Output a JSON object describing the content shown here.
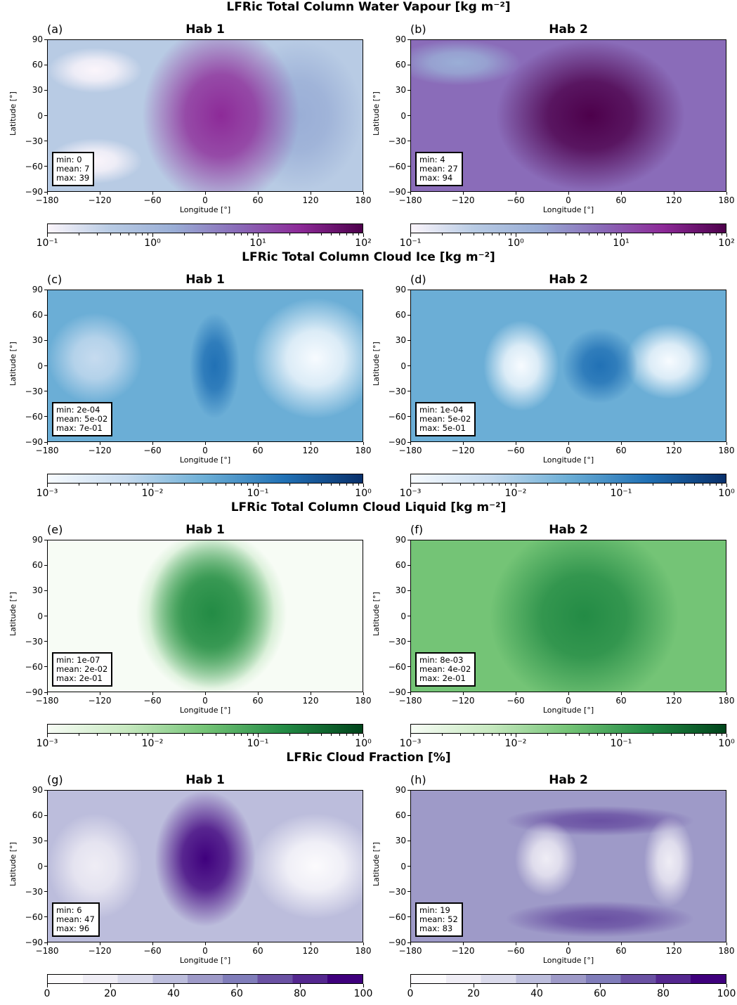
{
  "rows": [
    {
      "title": "LFRic Total Column Water Vapour [kg m⁻²]",
      "cmap": [
        "#fbf5fb",
        "#b8cbe4",
        "#9aaed6",
        "#8a6cb9",
        "#8d2a98",
        "#4d004b"
      ],
      "colorbar": {
        "type": "log",
        "ticks": [
          "10⁻¹",
          "10⁰",
          "10¹",
          "10²"
        ]
      },
      "panels": [
        {
          "letter": "(a)",
          "title": "Hab 1",
          "stats": [
            "min: 0",
            "mean: 7",
            "max: 39"
          ]
        },
        {
          "letter": "(b)",
          "title": "Hab 2",
          "stats": [
            "min: 4",
            "mean: 27",
            "max: 94"
          ]
        }
      ]
    },
    {
      "title": "LFRic Total Column Cloud Ice [kg m⁻²]",
      "cmap": [
        "#f7fbff",
        "#c6dbef",
        "#6baed6",
        "#2171b5",
        "#08306b"
      ],
      "colorbar": {
        "type": "log",
        "ticks": [
          "10⁻³",
          "10⁻²",
          "10⁻¹",
          "10⁰"
        ]
      },
      "panels": [
        {
          "letter": "(c)",
          "title": "Hab 1",
          "stats": [
            "min: 2e-04",
            "mean: 5e-02",
            "max: 7e-01"
          ]
        },
        {
          "letter": "(d)",
          "title": "Hab 2",
          "stats": [
            "min: 1e-04",
            "mean: 5e-02",
            "max: 5e-01"
          ]
        }
      ]
    },
    {
      "title": "LFRic Total Column Cloud Liquid [kg m⁻²]",
      "cmap": [
        "#f7fcf5",
        "#c7e9c0",
        "#74c476",
        "#238b45",
        "#00441b"
      ],
      "colorbar": {
        "type": "log",
        "ticks": [
          "10⁻³",
          "10⁻²",
          "10⁻¹",
          "10⁰"
        ]
      },
      "panels": [
        {
          "letter": "(e)",
          "title": "Hab 1",
          "stats": [
            "min: 1e-07",
            "mean: 2e-02",
            "max: 2e-01"
          ]
        },
        {
          "letter": "(f)",
          "title": "Hab 2",
          "stats": [
            "min: 8e-03",
            "mean: 4e-02",
            "max: 2e-01"
          ]
        }
      ]
    },
    {
      "title": "LFRic Cloud Fraction [%]",
      "cmap": [
        "#fcfbfd",
        "#efedf5",
        "#dadaeb",
        "#bcbddc",
        "#9e9ac8",
        "#807dba",
        "#6a51a3",
        "#54278f",
        "#3f007d"
      ],
      "colorbar": {
        "type": "linear",
        "ticks": [
          "0",
          "20",
          "40",
          "60",
          "80",
          "100"
        ]
      },
      "panels": [
        {
          "letter": "(g)",
          "title": "Hab 1",
          "stats": [
            "min: 6",
            "mean: 47",
            "max: 96"
          ]
        },
        {
          "letter": "(h)",
          "title": "Hab 2",
          "stats": [
            "min: 19",
            "mean: 52",
            "max: 83"
          ]
        }
      ]
    }
  ],
  "axes": {
    "xlabel": "Longitude [°]",
    "ylabel": "Latitude [°]",
    "xticks": [
      "−180",
      "−120",
      "−60",
      "0",
      "60",
      "120",
      "180"
    ],
    "yticks": [
      "90",
      "60",
      "30",
      "0",
      "−30",
      "−60",
      "−90"
    ]
  },
  "chart_data": [
    {
      "type": "heatmap",
      "title": "LFRic Total Column Water Vapour [kg m⁻²]",
      "subplot": "(a) Hab 1",
      "xlabel": "Longitude [°]",
      "ylabel": "Latitude [°]",
      "xlim": [
        -180,
        180
      ],
      "ylim": [
        -90,
        90
      ],
      "colorbar_scale": "log",
      "colorbar_range": [
        0.1,
        100
      ],
      "stats": {
        "min": 0,
        "mean": 7,
        "max": 39
      }
    },
    {
      "type": "heatmap",
      "title": "LFRic Total Column Water Vapour [kg m⁻²]",
      "subplot": "(b) Hab 2",
      "xlabel": "Longitude [°]",
      "ylabel": "Latitude [°]",
      "xlim": [
        -180,
        180
      ],
      "ylim": [
        -90,
        90
      ],
      "colorbar_scale": "log",
      "colorbar_range": [
        0.1,
        100
      ],
      "stats": {
        "min": 4,
        "mean": 27,
        "max": 94
      }
    },
    {
      "type": "heatmap",
      "title": "LFRic Total Column Cloud Ice [kg m⁻²]",
      "subplot": "(c) Hab 1",
      "xlabel": "Longitude [°]",
      "ylabel": "Latitude [°]",
      "xlim": [
        -180,
        180
      ],
      "ylim": [
        -90,
        90
      ],
      "colorbar_scale": "log",
      "colorbar_range": [
        0.001,
        1
      ],
      "stats": {
        "min": "2e-04",
        "mean": "5e-02",
        "max": "7e-01"
      }
    },
    {
      "type": "heatmap",
      "title": "LFRic Total Column Cloud Ice [kg m⁻²]",
      "subplot": "(d) Hab 2",
      "xlabel": "Longitude [°]",
      "ylabel": "Latitude [°]",
      "xlim": [
        -180,
        180
      ],
      "ylim": [
        -90,
        90
      ],
      "colorbar_scale": "log",
      "colorbar_range": [
        0.001,
        1
      ],
      "stats": {
        "min": "1e-04",
        "mean": "5e-02",
        "max": "5e-01"
      }
    },
    {
      "type": "heatmap",
      "title": "LFRic Total Column Cloud Liquid [kg m⁻²]",
      "subplot": "(e) Hab 1",
      "xlabel": "Longitude [°]",
      "ylabel": "Latitude [°]",
      "xlim": [
        -180,
        180
      ],
      "ylim": [
        -90,
        90
      ],
      "colorbar_scale": "log",
      "colorbar_range": [
        0.001,
        1
      ],
      "stats": {
        "min": "1e-07",
        "mean": "2e-02",
        "max": "2e-01"
      }
    },
    {
      "type": "heatmap",
      "title": "LFRic Total Column Cloud Liquid [kg m⁻²]",
      "subplot": "(f) Hab 2",
      "xlabel": "Longitude [°]",
      "ylabel": "Latitude [°]",
      "xlim": [
        -180,
        180
      ],
      "ylim": [
        -90,
        90
      ],
      "colorbar_scale": "log",
      "colorbar_range": [
        0.001,
        1
      ],
      "stats": {
        "min": "8e-03",
        "mean": "4e-02",
        "max": "2e-01"
      }
    },
    {
      "type": "heatmap",
      "title": "LFRic Cloud Fraction [%]",
      "subplot": "(g) Hab 1",
      "xlabel": "Longitude [°]",
      "ylabel": "Latitude [°]",
      "xlim": [
        -180,
        180
      ],
      "ylim": [
        -90,
        90
      ],
      "colorbar_scale": "linear",
      "colorbar_range": [
        0,
        100
      ],
      "stats": {
        "min": 6,
        "mean": 47,
        "max": 96
      }
    },
    {
      "type": "heatmap",
      "title": "LFRic Cloud Fraction [%]",
      "subplot": "(h) Hab 2",
      "xlabel": "Longitude [°]",
      "ylabel": "Latitude [°]",
      "xlim": [
        -180,
        180
      ],
      "ylim": [
        -90,
        90
      ],
      "colorbar_scale": "linear",
      "colorbar_range": [
        0,
        100
      ],
      "stats": {
        "min": 19,
        "mean": 52,
        "max": 83
      }
    }
  ]
}
